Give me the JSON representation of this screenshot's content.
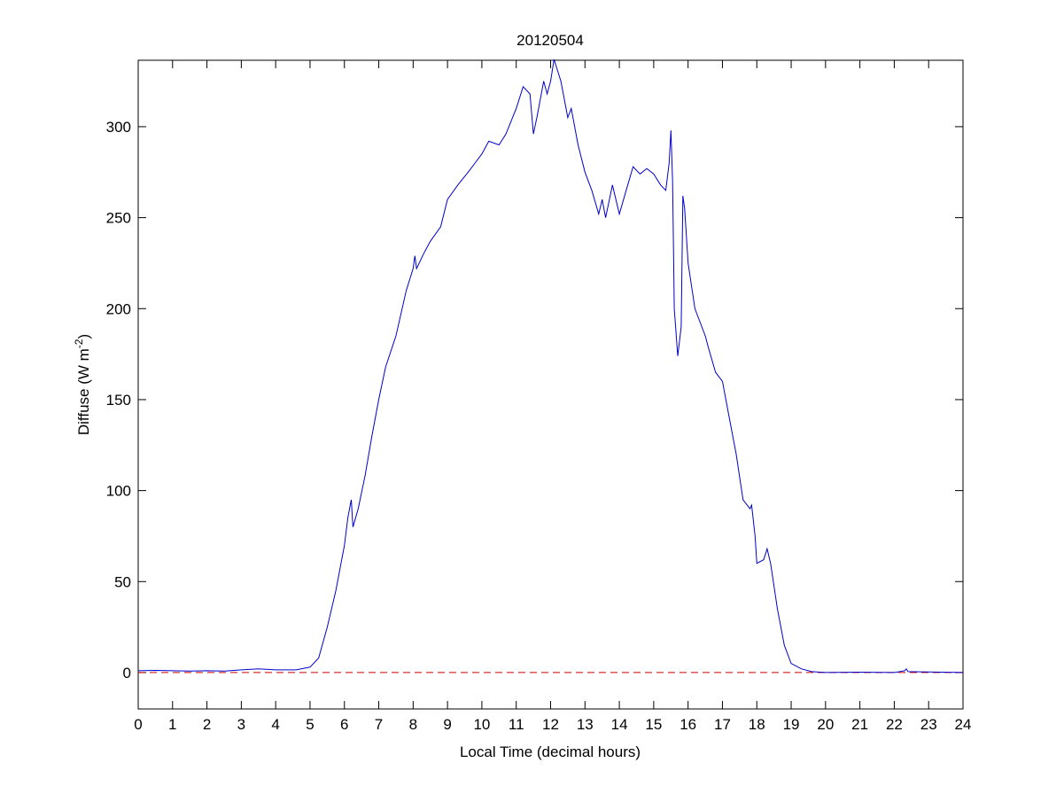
{
  "chart_data": {
    "type": "line",
    "title": "20120504",
    "xlabel": "Local Time (decimal hours)",
    "ylabel": {
      "text": "Diffuse (W m",
      "superscript": "-2",
      "suffix": ")"
    },
    "xlim": [
      0,
      24
    ],
    "ylim": [
      -20,
      336.5
    ],
    "xticks": [
      0,
      1,
      2,
      3,
      4,
      5,
      6,
      7,
      8,
      9,
      10,
      11,
      12,
      13,
      14,
      15,
      16,
      17,
      18,
      19,
      20,
      21,
      22,
      23,
      24
    ],
    "yticks": [
      0,
      50,
      100,
      150,
      200,
      250,
      300
    ],
    "grid": false,
    "series": [
      {
        "color": "#0000cc",
        "x": [
          0,
          0.5,
          1,
          1.5,
          2,
          2.5,
          3,
          3.5,
          4,
          4.3,
          4.6,
          5,
          5.25,
          5.5,
          5.75,
          6,
          6.1,
          6.2,
          6.25,
          6.4,
          6.6,
          6.8,
          7,
          7.2,
          7.5,
          7.8,
          8,
          8.05,
          8.1,
          8.3,
          8.5,
          8.8,
          9,
          9.3,
          9.6,
          9.8,
          10,
          10.2,
          10.5,
          10.7,
          11,
          11.2,
          11.4,
          11.5,
          11.6,
          11.8,
          11.9,
          12,
          12.1,
          12.3,
          12.5,
          12.6,
          12.8,
          13,
          13.2,
          13.4,
          13.5,
          13.6,
          13.8,
          14,
          14.2,
          14.4,
          14.6,
          14.8,
          15,
          15.2,
          15.35,
          15.45,
          15.5,
          15.55,
          15.6,
          15.7,
          15.8,
          15.85,
          15.9,
          16,
          16.2,
          16.5,
          16.6,
          16.8,
          17,
          17.2,
          17.4,
          17.6,
          17.8,
          17.85,
          17.95,
          18,
          18.2,
          18.3,
          18.4,
          18.6,
          18.8,
          19,
          19.3,
          19.6,
          20,
          21,
          22,
          22.3,
          22.35,
          22.4,
          23,
          24
        ],
        "y": [
          1,
          1.2,
          1,
          0.8,
          1,
          0.8,
          1.5,
          2,
          1.5,
          1.5,
          1.5,
          3,
          8,
          25,
          45,
          70,
          85,
          95,
          80,
          90,
          108,
          130,
          150,
          168,
          185,
          210,
          222,
          229,
          222,
          230,
          237,
          245,
          260,
          268,
          275,
          280,
          285,
          292,
          290,
          296,
          310,
          322,
          318,
          296,
          305,
          325,
          318,
          325,
          337,
          325,
          305,
          310,
          290,
          275,
          265,
          252,
          260,
          250,
          268,
          252,
          265,
          278,
          274,
          277,
          274,
          268,
          265,
          280,
          298,
          270,
          200,
          174,
          190,
          262,
          255,
          225,
          200,
          185,
          178,
          165,
          160,
          140,
          120,
          95,
          90,
          92,
          75,
          60,
          62,
          68,
          60,
          35,
          15,
          5,
          2,
          0.5,
          0,
          0.2,
          0,
          1,
          2,
          0.5,
          0.3,
          0
        ]
      },
      {
        "color": "#cc0000",
        "style": "dashed",
        "x": [
          0,
          24
        ],
        "y": [
          0,
          0
        ]
      }
    ]
  }
}
